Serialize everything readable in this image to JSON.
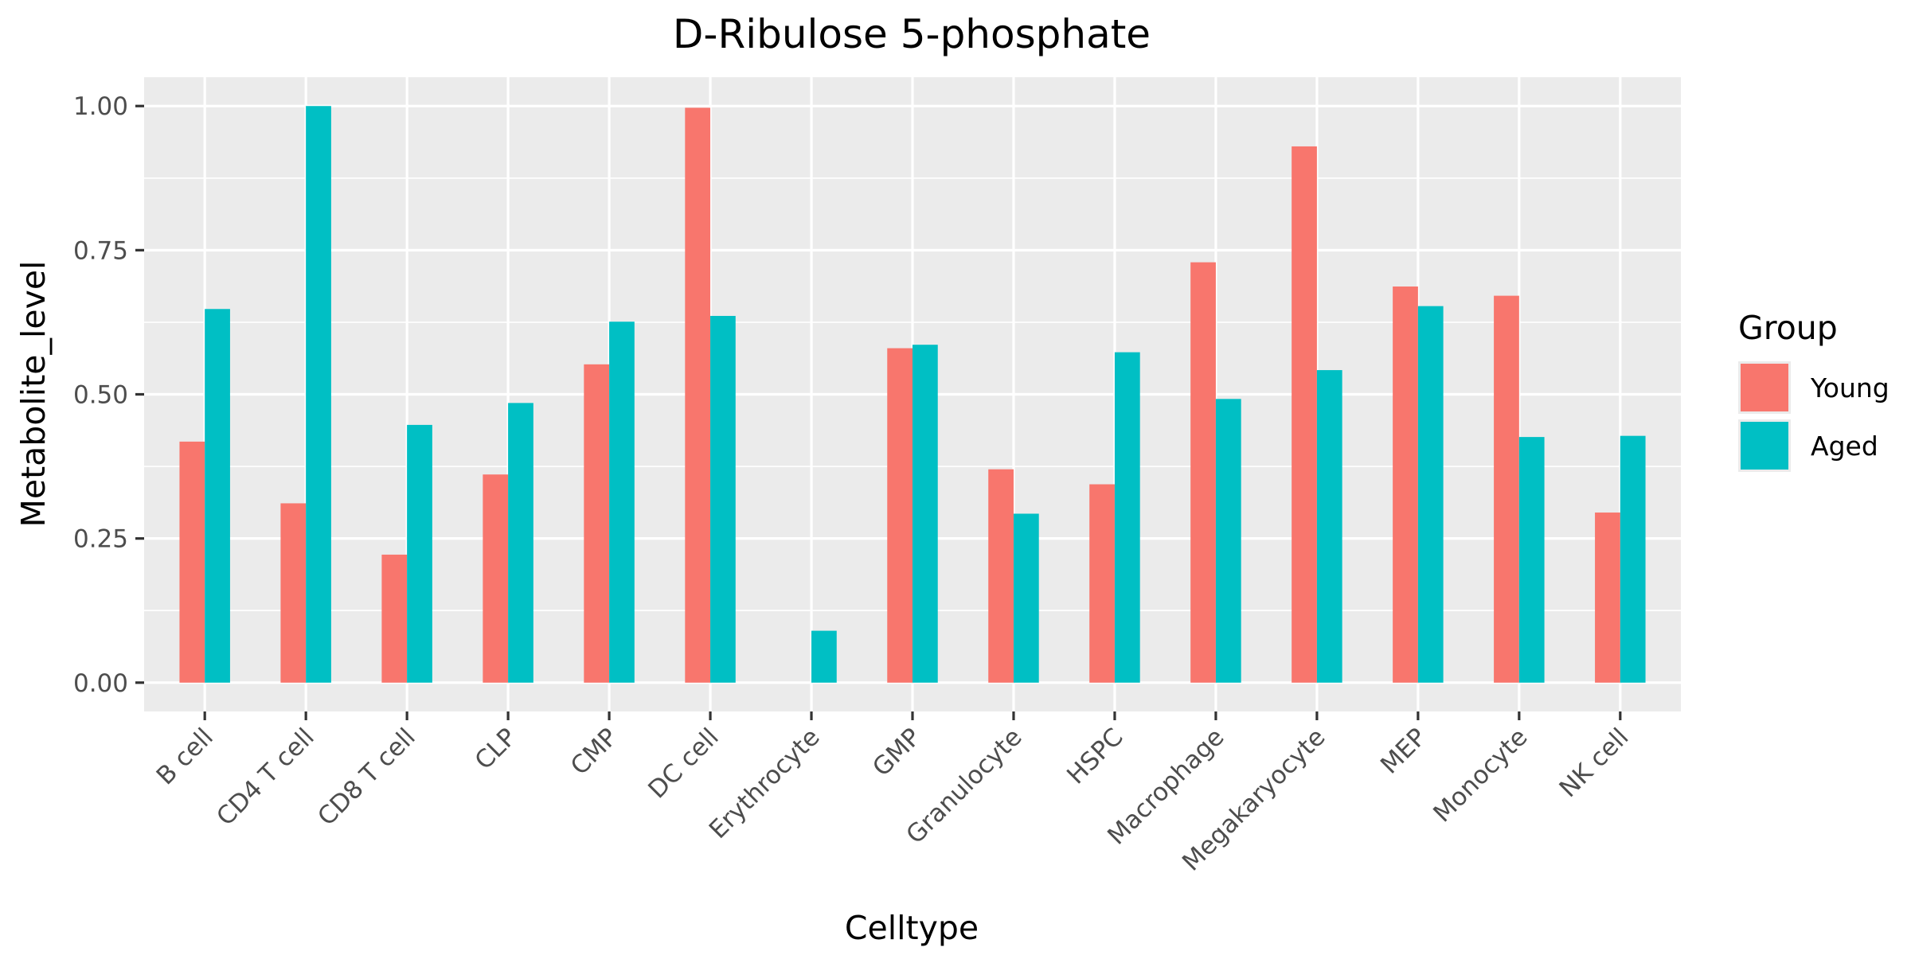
{
  "chart_data": {
    "type": "bar",
    "title": "D-Ribulose 5-phosphate",
    "xlabel": "Celltype",
    "ylabel": "Metabolite_level",
    "ylim": [
      -0.05,
      1.05
    ],
    "yticks": [
      "0.00",
      "0.25",
      "0.50",
      "0.75",
      "1.00"
    ],
    "ytick_values": [
      0,
      0.25,
      0.5,
      0.75,
      1.0
    ],
    "grid": true,
    "legend_title": "Group",
    "legend_position": "right",
    "categories": [
      "B cell",
      "CD4 T cell",
      "CD8 T cell",
      "CLP",
      "CMP",
      "DC cell",
      "Erythrocyte",
      "GMP",
      "Granulocyte",
      "HSPC",
      "Macrophage",
      "Megakaryocyte",
      "MEP",
      "Monocyte",
      "NK cell"
    ],
    "series": [
      {
        "name": "Young",
        "color": "#f8766d",
        "values": [
          0.418,
          0.311,
          0.222,
          0.361,
          0.552,
          0.997,
          null,
          0.58,
          0.37,
          0.344,
          0.729,
          0.93,
          0.687,
          0.671,
          0.295
        ]
      },
      {
        "name": "Aged",
        "color": "#00bfc4",
        "values": [
          0.648,
          1.0,
          0.447,
          0.485,
          0.626,
          0.636,
          0.09,
          0.586,
          0.293,
          0.573,
          0.492,
          0.542,
          0.653,
          0.426,
          0.428
        ]
      }
    ],
    "panel_background": "#ebebeb",
    "grid_color": "#ffffff"
  }
}
